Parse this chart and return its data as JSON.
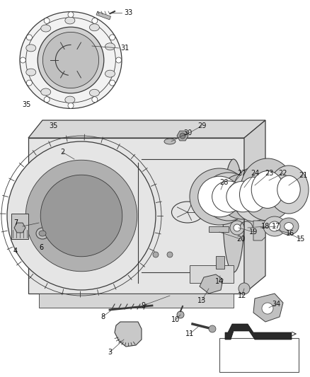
{
  "bg_color": "#ffffff",
  "fig_width": 4.38,
  "fig_height": 5.33,
  "dpi": 100,
  "line_color": "#3a3a3a",
  "fill_light": "#e8e8e8",
  "fill_mid": "#cccccc",
  "fill_dark": "#aaaaaa"
}
